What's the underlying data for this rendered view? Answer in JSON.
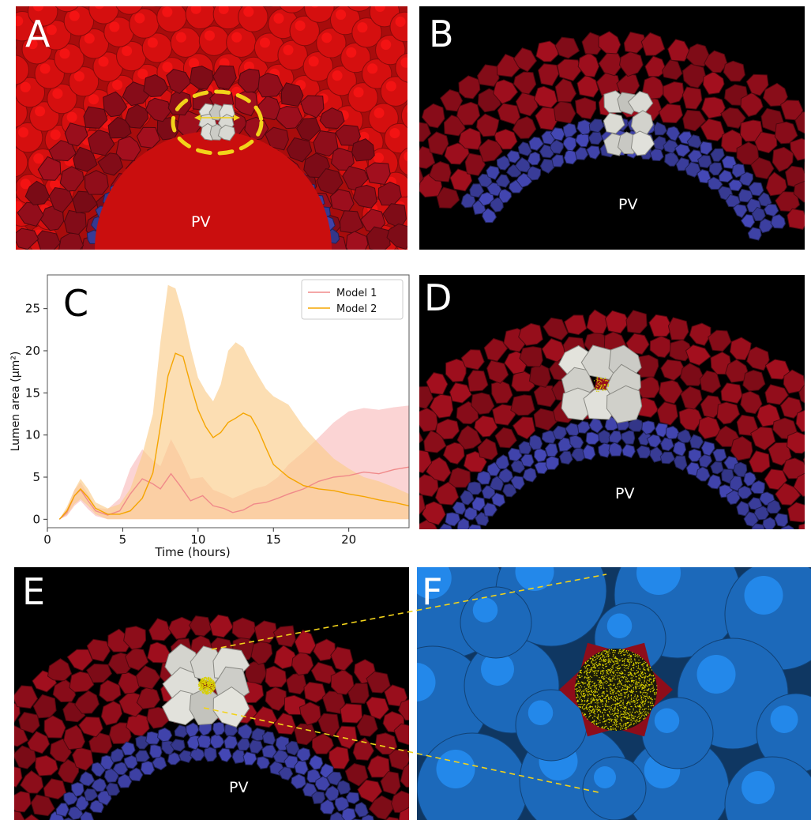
{
  "figure": {
    "panels": [
      {
        "id": "A",
        "label": "A",
        "annotation": "PV"
      },
      {
        "id": "B",
        "label": "B",
        "annotation": "PV"
      },
      {
        "id": "C",
        "label": "C"
      },
      {
        "id": "D",
        "label": "D",
        "annotation": "PV"
      },
      {
        "id": "E",
        "label": "E",
        "annotation": "PV"
      },
      {
        "id": "F",
        "label": "F"
      }
    ],
    "colors": {
      "outer_red": "#e01010",
      "dark_red": "#8e0d1a",
      "blue": "#3c3fa0",
      "bright_blue": "#1d6ec4",
      "grey": "#9ea393",
      "white_cells": "#d8d8d2",
      "lumen": "#d8d000",
      "dashed_circle": "#f2d31a"
    }
  },
  "chart_data": {
    "type": "line",
    "label": "C",
    "xlabel": "Time (hours)",
    "ylabel": "Lumen area (μm²)",
    "xlim": [
      0,
      24
    ],
    "ylim": [
      -1,
      29
    ],
    "xticks": [
      0,
      5,
      10,
      15,
      20
    ],
    "yticks": [
      0,
      5,
      10,
      15,
      20,
      25
    ],
    "legend_position": "top-right",
    "series": [
      {
        "name": "Model 1",
        "color": "#f08a8a",
        "band_color": "#f9b8b8",
        "x": [
          0.8,
          1.3,
          1.8,
          2.2,
          2.7,
          3.2,
          4,
          4.8,
          5.5,
          6.3,
          7,
          7.5,
          8.2,
          8.8,
          9.5,
          10.3,
          11,
          11.7,
          12.3,
          13,
          13.7,
          14.5,
          15.3,
          16,
          17,
          18,
          19,
          20,
          21,
          22,
          23,
          24
        ],
        "mean": [
          0,
          0.8,
          2.8,
          3.5,
          2.2,
          1,
          0.5,
          1,
          3,
          4.8,
          4.2,
          3.6,
          5.4,
          4,
          2.2,
          2.8,
          1.6,
          1.3,
          0.8,
          1.1,
          1.8,
          2,
          2.5,
          3,
          3.6,
          4.5,
          5,
          5.2,
          5.6,
          5.4,
          5.9,
          6.2
        ],
        "lower": [
          0,
          0.4,
          1.6,
          2.2,
          1.2,
          0.4,
          0,
          0,
          0,
          0,
          0,
          0,
          0,
          0,
          0,
          0,
          0,
          0,
          0,
          0,
          0,
          0,
          0,
          0,
          0,
          0,
          0,
          0,
          0,
          0,
          0,
          0
        ],
        "upper": [
          0,
          1.3,
          3.5,
          4.4,
          3,
          1.4,
          1.2,
          2.5,
          6,
          8.3,
          7,
          6.3,
          9.5,
          7.5,
          4.8,
          5,
          3.5,
          3,
          2.5,
          3,
          3.6,
          4,
          5,
          6.5,
          8,
          9.7,
          11.5,
          12.8,
          13.2,
          13,
          13.3,
          13.5
        ]
      },
      {
        "name": "Model 2",
        "color": "#f5a500",
        "band_color": "#fbcc8a",
        "x": [
          0.8,
          1.3,
          1.8,
          2.2,
          2.7,
          3.2,
          4,
          4.8,
          5.5,
          6.3,
          7,
          7.5,
          8,
          8.5,
          9,
          9.5,
          10,
          10.5,
          11,
          11.5,
          12,
          12.5,
          13,
          13.5,
          14,
          14.5,
          15,
          16,
          17,
          18,
          19,
          20,
          21,
          22,
          23,
          24
        ],
        "mean": [
          0,
          1,
          2.8,
          3.6,
          2.6,
          1.3,
          0.6,
          0.6,
          1,
          2.5,
          5.5,
          11,
          17,
          19.7,
          19.3,
          16,
          13,
          11,
          9.7,
          10.3,
          11.5,
          12,
          12.6,
          12.2,
          10.6,
          8.5,
          6.5,
          5,
          4,
          3.6,
          3.4,
          3,
          2.7,
          2.3,
          2,
          1.6
        ],
        "lower": [
          0,
          0.5,
          1.8,
          2.4,
          1.6,
          0.6,
          0,
          0,
          0,
          0,
          0,
          0,
          0,
          0,
          0,
          0,
          0,
          0,
          0,
          0,
          0,
          0,
          0,
          0,
          0,
          0,
          0,
          0,
          0,
          0,
          0,
          0,
          0,
          0,
          0,
          0
        ],
        "upper": [
          0,
          1.5,
          3.5,
          4.8,
          3.6,
          2,
          1.3,
          1.8,
          3.6,
          7.7,
          12.5,
          21,
          27.8,
          27.4,
          24.3,
          20.3,
          16.8,
          15.2,
          14,
          16,
          20,
          21,
          20.4,
          18.6,
          17,
          15.5,
          14.6,
          13.6,
          11,
          9,
          7.2,
          6,
          5,
          4.5,
          3.8,
          3
        ]
      }
    ]
  }
}
